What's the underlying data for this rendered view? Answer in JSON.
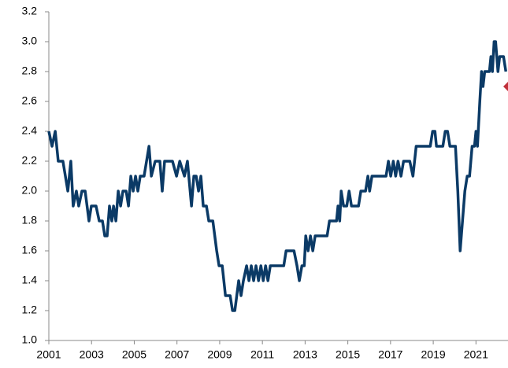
{
  "chart_data": {
    "type": "line",
    "xlim": [
      2001,
      2022.5
    ],
    "xticks": [
      2001,
      2003,
      2005,
      2007,
      2009,
      2011,
      2013,
      2015,
      2017,
      2019,
      2021
    ],
    "ylim": [
      1.0,
      3.2
    ],
    "yticks": [
      {
        "value": 1.0,
        "label": "1.0"
      },
      1.2,
      1.4,
      1.6,
      1.8,
      {
        "value": 2.0,
        "label": "2.0"
      },
      2.2,
      2.4,
      2.6,
      2.8,
      {
        "value": 3.0,
        "label": "3.0"
      },
      3.2
    ],
    "grid": false,
    "series": [
      {
        "color": "#0b3a66",
        "style": "line",
        "x": [
          2001.0,
          2001.15,
          2001.3,
          2001.44,
          2001.66,
          2001.89,
          2002.03,
          2002.14,
          2002.29,
          2002.4,
          2002.55,
          2002.7,
          2002.88,
          2002.99,
          2003.21,
          2003.36,
          2003.51,
          2003.62,
          2003.73,
          2003.84,
          2003.95,
          2004.03,
          2004.14,
          2004.25,
          2004.36,
          2004.47,
          2004.62,
          2004.73,
          2004.84,
          2004.95,
          2005.06,
          2005.17,
          2005.28,
          2005.46,
          2005.69,
          2005.8,
          2005.98,
          2006.2,
          2006.31,
          2006.42,
          2006.79,
          2006.98,
          2007.13,
          2007.35,
          2007.49,
          2007.68,
          2007.79,
          2007.9,
          2008.01,
          2008.12,
          2008.23,
          2008.38,
          2008.49,
          2008.68,
          2008.86,
          2008.97,
          2009.12,
          2009.27,
          2009.49,
          2009.6,
          2009.71,
          2009.89,
          2010.0,
          2010.11,
          2010.26,
          2010.37,
          2010.48,
          2010.59,
          2010.7,
          2010.82,
          2010.93,
          2011.04,
          2011.15,
          2011.26,
          2011.37,
          2012.0,
          2012.11,
          2012.48,
          2012.62,
          2012.73,
          2012.85,
          2012.96,
          2013.03,
          2013.14,
          2013.25,
          2013.36,
          2013.47,
          2014.03,
          2014.14,
          2014.47,
          2014.54,
          2014.62,
          2014.69,
          2014.8,
          2014.95,
          2015.06,
          2015.17,
          2015.5,
          2015.61,
          2015.83,
          2015.94,
          2016.02,
          2016.13,
          2016.79,
          2016.9,
          2017.01,
          2017.13,
          2017.24,
          2017.35,
          2017.49,
          2017.61,
          2017.9,
          2018.05,
          2018.2,
          2018.86,
          2018.97,
          2019.08,
          2019.15,
          2019.45,
          2019.56,
          2019.67,
          2019.78,
          2020.04,
          2020.15,
          2020.26,
          2020.37,
          2020.48,
          2020.59,
          2020.7,
          2020.82,
          2020.93,
          2021.0,
          2021.07,
          2021.18,
          2021.26,
          2021.33,
          2021.41,
          2021.63,
          2021.7,
          2021.77,
          2021.85,
          2021.92,
          2022.03,
          2022.11,
          2022.29,
          2022.4
        ],
        "values": [
          2.4,
          2.3,
          2.4,
          2.2,
          2.2,
          2.0,
          2.2,
          1.9,
          2.0,
          1.9,
          2.0,
          2.0,
          1.8,
          1.9,
          1.9,
          1.8,
          1.8,
          1.7,
          1.7,
          1.9,
          1.8,
          1.9,
          1.8,
          2.0,
          1.9,
          2.0,
          2.0,
          1.9,
          2.1,
          2.0,
          2.1,
          2.0,
          2.1,
          2.1,
          2.3,
          2.1,
          2.2,
          2.2,
          2.0,
          2.2,
          2.2,
          2.1,
          2.2,
          2.1,
          2.2,
          1.9,
          2.1,
          2.1,
          2.0,
          2.1,
          1.9,
          1.9,
          1.8,
          1.8,
          1.6,
          1.5,
          1.5,
          1.3,
          1.3,
          1.2,
          1.2,
          1.4,
          1.3,
          1.4,
          1.5,
          1.4,
          1.5,
          1.4,
          1.5,
          1.4,
          1.5,
          1.4,
          1.5,
          1.4,
          1.5,
          1.5,
          1.6,
          1.6,
          1.5,
          1.4,
          1.5,
          1.5,
          1.7,
          1.6,
          1.7,
          1.6,
          1.7,
          1.7,
          1.8,
          1.8,
          1.9,
          1.8,
          2.0,
          1.9,
          1.9,
          2.0,
          1.9,
          1.9,
          2.0,
          2.0,
          2.1,
          2.0,
          2.1,
          2.1,
          2.2,
          2.1,
          2.2,
          2.1,
          2.2,
          2.1,
          2.2,
          2.2,
          2.1,
          2.3,
          2.3,
          2.4,
          2.4,
          2.3,
          2.3,
          2.4,
          2.4,
          2.3,
          2.3,
          2.0,
          1.6,
          1.8,
          2.0,
          2.1,
          2.1,
          2.3,
          2.3,
          2.4,
          2.3,
          2.6,
          2.8,
          2.7,
          2.8,
          2.8,
          2.9,
          2.8,
          3.0,
          3.0,
          2.8,
          2.9,
          2.9,
          2.8
        ]
      },
      {
        "color": "#c0303a",
        "style": "diamond",
        "x": [
          2022.5
        ],
        "values": [
          2.7
        ]
      }
    ]
  }
}
